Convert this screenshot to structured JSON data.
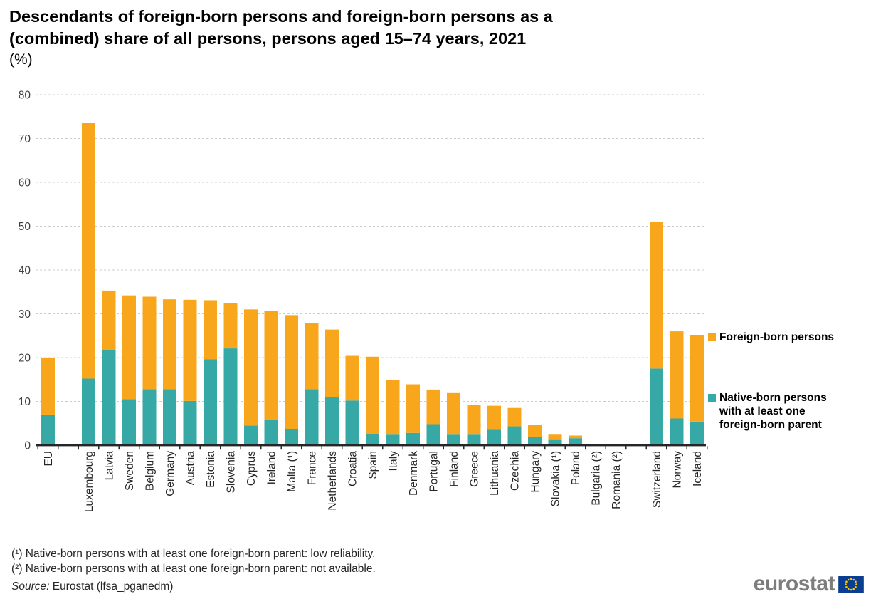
{
  "title": {
    "line1": "Descendants of foreign-born persons and foreign-born persons as a",
    "line2": "(combined) share of all persons, persons aged 15–74 years, 2021",
    "unit": "(%)"
  },
  "chart_data": {
    "type": "bar",
    "subtype": "stacked-vertical",
    "title": "Descendants of foreign-born persons and foreign-born persons as a (combined) share of all persons, persons aged 15–74 years, 2021",
    "ylabel": "(%)",
    "ylim": [
      0,
      80
    ],
    "y_ticks": [
      0,
      10,
      20,
      30,
      40,
      50,
      60,
      70,
      80
    ],
    "grid": "horizontal-dashed",
    "legend_position": "right",
    "series": [
      {
        "id": "foreign",
        "name": "Foreign-born persons",
        "color": "#F8A61B"
      },
      {
        "id": "native",
        "name": "Native-born persons with at least one foreign-born parent",
        "color": "#36A9A6"
      }
    ],
    "stack_order_bottom_to_top": [
      "native",
      "foreign"
    ],
    "groups": [
      [
        {
          "label": "EU",
          "native": 7.0,
          "foreign": 13.0
        }
      ],
      [
        {
          "label": "Luxembourg",
          "native": 15.2,
          "foreign": 58.4
        },
        {
          "label": "Latvia",
          "native": 21.7,
          "foreign": 13.6
        },
        {
          "label": "Sweden",
          "native": 10.5,
          "foreign": 23.7
        },
        {
          "label": "Belgium",
          "native": 12.8,
          "foreign": 21.1
        },
        {
          "label": "Germany",
          "native": 12.8,
          "foreign": 20.5
        },
        {
          "label": "Austria",
          "native": 10.1,
          "foreign": 23.1
        },
        {
          "label": "Estonia",
          "native": 19.6,
          "foreign": 13.5
        },
        {
          "label": "Slovenia",
          "native": 22.1,
          "foreign": 10.3
        },
        {
          "label": "Cyprus",
          "native": 4.5,
          "foreign": 26.5
        },
        {
          "label": "Ireland",
          "native": 5.8,
          "foreign": 24.8
        },
        {
          "label": "Malta (¹)",
          "native": 3.6,
          "foreign": 26.1
        },
        {
          "label": "France",
          "native": 12.8,
          "foreign": 15.0
        },
        {
          "label": "Netherlands",
          "native": 10.9,
          "foreign": 15.5
        },
        {
          "label": "Croatia",
          "native": 10.2,
          "foreign": 10.2
        },
        {
          "label": "Spain",
          "native": 2.5,
          "foreign": 17.7
        },
        {
          "label": "Italy",
          "native": 2.4,
          "foreign": 12.5
        },
        {
          "label": "Denmark",
          "native": 2.8,
          "foreign": 11.1
        },
        {
          "label": "Portugal",
          "native": 4.8,
          "foreign": 7.9
        },
        {
          "label": "Finland",
          "native": 2.4,
          "foreign": 9.5
        },
        {
          "label": "Greece",
          "native": 2.4,
          "foreign": 6.8
        },
        {
          "label": "Lithuania",
          "native": 3.5,
          "foreign": 5.5
        },
        {
          "label": "Czechia",
          "native": 4.3,
          "foreign": 4.2
        },
        {
          "label": "Hungary",
          "native": 1.8,
          "foreign": 2.8
        },
        {
          "label": "Slovakia (¹)",
          "native": 1.2,
          "foreign": 1.2
        },
        {
          "label": "Poland",
          "native": 1.6,
          "foreign": 0.6
        },
        {
          "label": "Bulgaria (²)",
          "native": null,
          "foreign": 0.3
        },
        {
          "label": "Romania (²)",
          "native": null,
          "foreign": 0.2
        }
      ],
      [
        {
          "label": "Switzerland",
          "native": 17.5,
          "foreign": 33.5
        },
        {
          "label": "Norway",
          "native": 6.1,
          "foreign": 19.9
        },
        {
          "label": "Iceland",
          "native": 5.4,
          "foreign": 19.8
        }
      ]
    ]
  },
  "footnotes": [
    "(¹) Native-born persons with at least one foreign-born parent: low reliability.",
    "(²) Native-born persons with at least one foreign-born parent: not available."
  ],
  "source": {
    "prefix": "Source:",
    "text": " Eurostat (lfsa_pganedm)"
  },
  "logo": {
    "wordmark": "eurostat"
  },
  "colors": {
    "foreign_orange": "#F8A61B",
    "native_teal": "#36A9A6",
    "gridline": "#cccccc",
    "axis": "#262626"
  }
}
